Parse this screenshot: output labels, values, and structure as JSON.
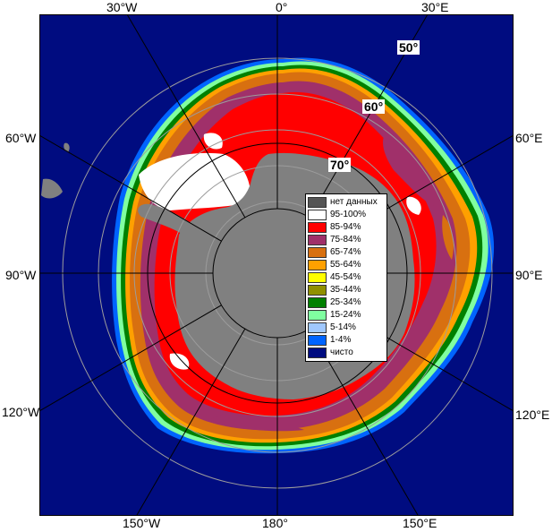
{
  "colors": {
    "ocean": "#000c80",
    "land": "#808080",
    "ice_95": "#ffffff",
    "ice_85": "#ff0000",
    "ice_75": "#a0306a",
    "ice_65": "#d87010",
    "ice_55": "#ffa000",
    "ice_45": "#ffff00",
    "ice_35": "#909000",
    "ice_25": "#008000",
    "ice_15": "#80ffa0",
    "ice_5": "#a0c8ff",
    "ice_1": "#0064ff"
  },
  "lon_labels": {
    "w30": "30°W",
    "zero": "0°",
    "e30": "30°E",
    "w60": "60°W",
    "e60": "60°E",
    "w90": "90°W",
    "e90": "90°E",
    "w120": "120°W",
    "e120": "120°E",
    "w150": "150°W",
    "c180": "180°",
    "e150": "150°E"
  },
  "lat_labels": {
    "l50": "50°",
    "l60": "60°",
    "l70": "70°"
  },
  "legend": [
    {
      "label": "нет данных",
      "color": "#555555"
    },
    {
      "label": "95-100%",
      "color": "#ffffff"
    },
    {
      "label": "85-94%",
      "color": "#ff0000"
    },
    {
      "label": "75-84%",
      "color": "#a0306a"
    },
    {
      "label": "65-74%",
      "color": "#d87010"
    },
    {
      "label": "55-64%",
      "color": "#ffa000"
    },
    {
      "label": "45-54%",
      "color": "#ffff00"
    },
    {
      "label": "35-44%",
      "color": "#909000"
    },
    {
      "label": "25-34%",
      "color": "#008000"
    },
    {
      "label": "15-24%",
      "color": "#80ffa0"
    },
    {
      "label": "5-14%",
      "color": "#a0c8ff"
    },
    {
      "label": "1-4%",
      "color": "#0064ff"
    },
    {
      "label": "чисто",
      "color": "#000c80"
    }
  ]
}
